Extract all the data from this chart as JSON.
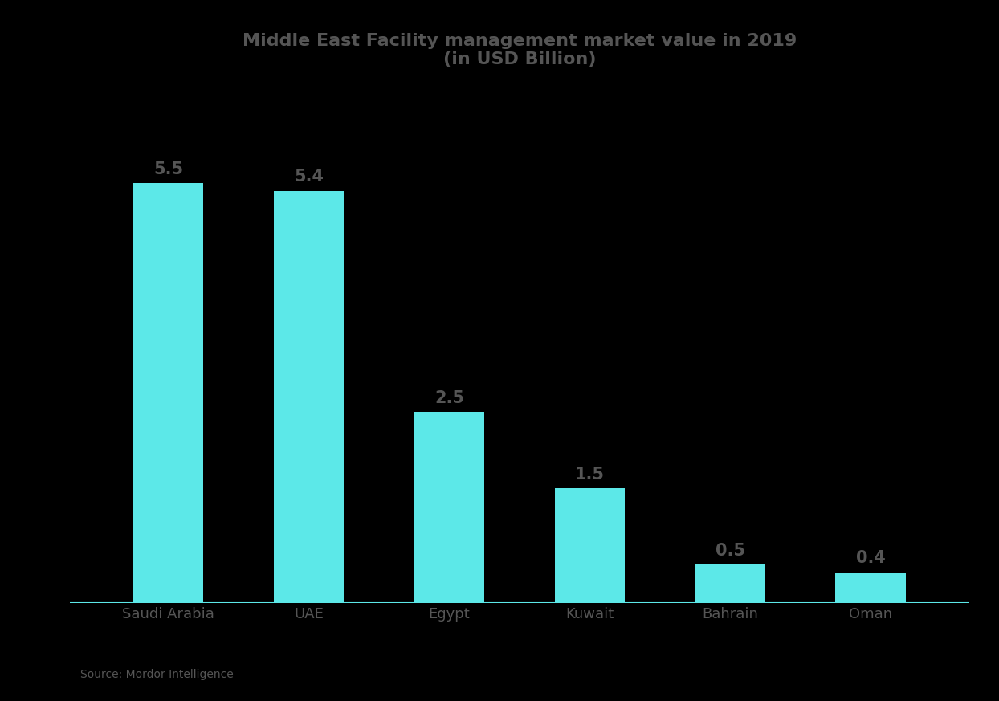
{
  "title_line1": "Middle East Facility management market value in 2019",
  "title_line2": "(in USD Billion)",
  "categories": [
    "Saudi Arabia",
    "UAE",
    "Egypt",
    "Kuwait",
    "Bahrain",
    "Oman"
  ],
  "values": [
    5.5,
    5.4,
    2.5,
    1.5,
    0.5,
    0.4
  ],
  "bar_color": "#5CE8E8",
  "background_color": "#000000",
  "text_color": "#555555",
  "title_color": "#555555",
  "bar_label_color": "#555555",
  "source_text": "Source: Mordor Intelligence",
  "ylim": [
    0,
    6.8
  ],
  "bar_width": 0.5
}
